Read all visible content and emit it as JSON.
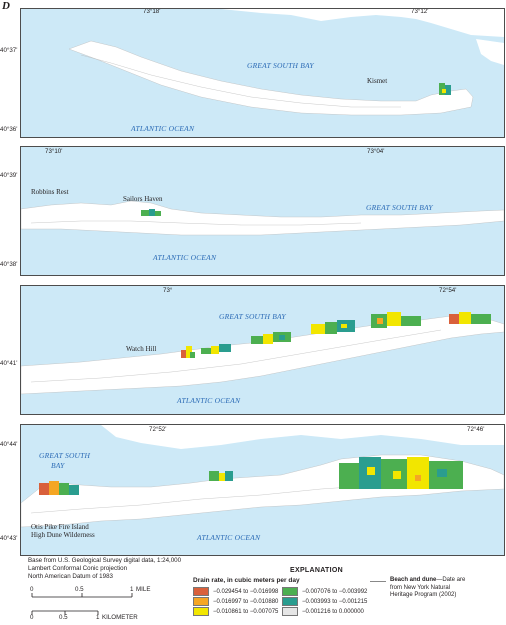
{
  "figure": {
    "letter": "D"
  },
  "colors": {
    "water": "#cde9f7",
    "land": "#ffffff",
    "water_label": "#2a6ab5",
    "class1": "#d9603b",
    "class2": "#f5a623",
    "class3": "#f2e600",
    "class4": "#4caf50",
    "class5": "#2a9d8f",
    "class6": "#e6e6e6"
  },
  "panels": [
    {
      "id": "panel-1",
      "top_coords": [
        "73°18'",
        "73°12'"
      ],
      "lat_labels": [
        "40°37'",
        "40°36'"
      ],
      "water_labels": [
        "GREAT SOUTH BAY",
        "ATLANTIC OCEAN"
      ],
      "places": [
        "Kismet"
      ]
    },
    {
      "id": "panel-2",
      "top_coords": [
        "73°10'",
        "73°04'"
      ],
      "lat_labels": [
        "40°39'",
        "40°38'"
      ],
      "water_labels": [
        "GREAT SOUTH BAY",
        "ATLANTIC OCEAN"
      ],
      "places": [
        "Robbins Rest",
        "Sailors Haven"
      ]
    },
    {
      "id": "panel-3",
      "top_coords": [
        "73°",
        "72°54'"
      ],
      "lat_labels": [
        "40°41'"
      ],
      "water_labels": [
        "GREAT SOUTH BAY",
        "ATLANTIC OCEAN"
      ],
      "places": [
        "Watch Hill"
      ]
    },
    {
      "id": "panel-4",
      "top_coords": [
        "72°52'",
        "72°46'"
      ],
      "lat_labels": [
        "40°44'",
        "40°43'"
      ],
      "water_labels": [
        "GREAT SOUTH",
        "BAY",
        "ATLANTIC OCEAN"
      ],
      "places": [
        "Otis Pike Fire Island",
        "High Dune Wilderness"
      ]
    }
  ],
  "footnote": [
    "Base from U.S. Geological Survey digital data, 1:24,000",
    "Lambert Conformal Conic projection",
    "North American Datum of 1983"
  ],
  "scale": {
    "mile_ticks": [
      "0",
      "0.5",
      "1"
    ],
    "mile_unit": "MILE",
    "km_ticks": [
      "0",
      "0.5",
      "1"
    ],
    "km_unit": "KILOMETER"
  },
  "legend": {
    "title": "EXPLANATION",
    "subtitle": "Drain rate, in cubic meters per day",
    "items": [
      {
        "label": "−0.029454 to −0.016998"
      },
      {
        "label": "−0.016997 to −0.010880"
      },
      {
        "label": "−0.010861 to −0.007075"
      },
      {
        "label": "−0.007076 to −0.003992"
      },
      {
        "label": "−0.003993 to −0.001215"
      },
      {
        "label": "−0.001216 to 0.000000"
      }
    ],
    "beach_dune_bold": "Beach and dune",
    "beach_dune_text": [
      "—Date are",
      "from New York Natural",
      "Heritage Program (2002)"
    ]
  }
}
